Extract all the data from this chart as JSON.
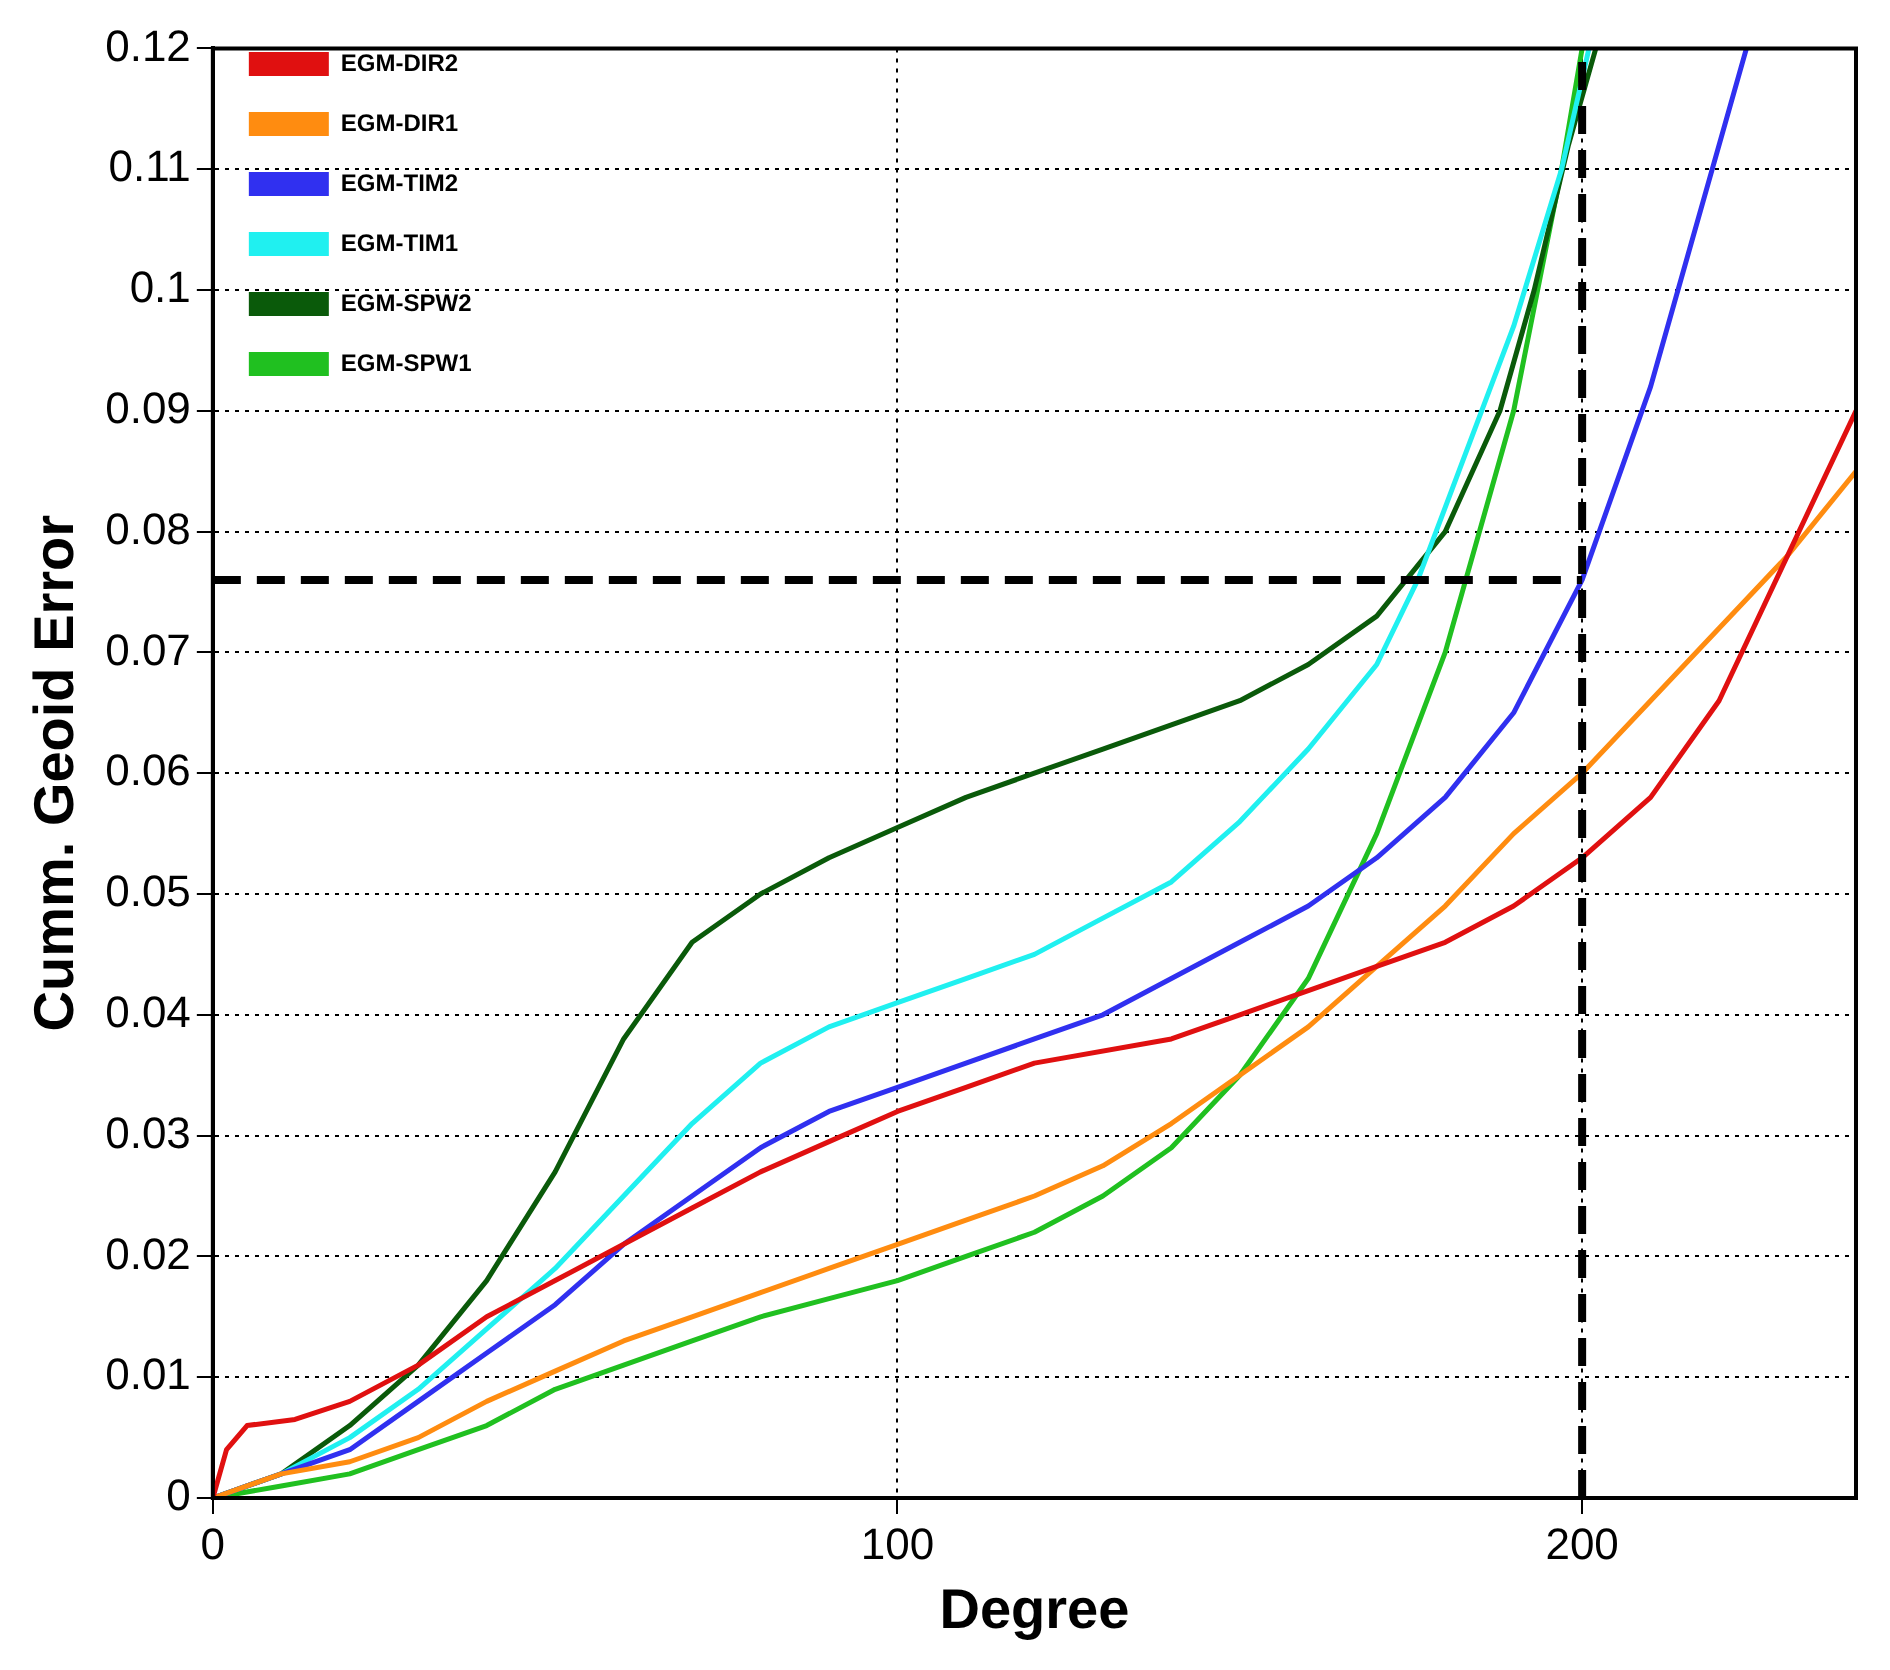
{
  "chart_data": {
    "type": "line",
    "xlabel": "Degree",
    "ylabel": "Cumm. Geoid Error",
    "xlim": [
      0,
      240
    ],
    "ylim": [
      0,
      0.12
    ],
    "xticks": [
      0,
      100,
      200
    ],
    "yticks": [
      0,
      0.01,
      0.02,
      0.03,
      0.04,
      0.05,
      0.06,
      0.07,
      0.08,
      0.09,
      0.1,
      0.11,
      0.12
    ],
    "grid": true,
    "legend": "top left",
    "marker": "none",
    "line_style": "solid",
    "ref_lines": [
      {
        "axis": "x",
        "value": 200,
        "line_style": "dashed",
        "color": "#000000"
      },
      {
        "axis": "y",
        "value": 0.076,
        "line_style": "dashed",
        "color": "#000000"
      }
    ],
    "series": [
      {
        "name": "EGM-DIR2",
        "color": "#e01010",
        "x": [
          0,
          2,
          5,
          12,
          20,
          30,
          40,
          50,
          60,
          70,
          80,
          90,
          100,
          110,
          120,
          140,
          150,
          160,
          170,
          180,
          190,
          200,
          210,
          220,
          230,
          240
        ],
        "values": [
          0,
          0.004,
          0.006,
          0.0065,
          0.008,
          0.011,
          0.015,
          0.018,
          0.021,
          0.024,
          0.027,
          0.0295,
          0.032,
          0.034,
          0.036,
          0.038,
          0.04,
          0.042,
          0.044,
          0.046,
          0.049,
          0.053,
          0.058,
          0.066,
          0.078,
          0.09
        ]
      },
      {
        "name": "EGM-DIR1",
        "color": "#ff8c10",
        "x": [
          0,
          10,
          20,
          30,
          40,
          50,
          60,
          70,
          80,
          90,
          100,
          110,
          120,
          130,
          140,
          150,
          160,
          170,
          180,
          190,
          200,
          210,
          220,
          230,
          240
        ],
        "values": [
          0,
          0.002,
          0.003,
          0.005,
          0.008,
          0.0105,
          0.013,
          0.015,
          0.017,
          0.019,
          0.021,
          0.023,
          0.025,
          0.0275,
          0.031,
          0.035,
          0.039,
          0.044,
          0.049,
          0.055,
          0.06,
          0.066,
          0.072,
          0.078,
          0.085
        ]
      },
      {
        "name": "EGM-TIM2",
        "color": "#3030f0",
        "x": [
          0,
          10,
          20,
          30,
          40,
          50,
          60,
          70,
          80,
          90,
          100,
          110,
          120,
          130,
          140,
          150,
          160,
          170,
          180,
          190,
          200,
          210,
          218,
          224
        ],
        "values": [
          0,
          0.002,
          0.004,
          0.008,
          0.012,
          0.016,
          0.021,
          0.025,
          0.029,
          0.032,
          0.034,
          0.036,
          0.038,
          0.04,
          0.043,
          0.046,
          0.049,
          0.053,
          0.058,
          0.065,
          0.076,
          0.092,
          0.108,
          0.12
        ]
      },
      {
        "name": "EGM-TIM1",
        "color": "#20f0f0",
        "x": [
          0,
          10,
          20,
          30,
          40,
          50,
          60,
          70,
          80,
          90,
          100,
          110,
          120,
          130,
          140,
          150,
          160,
          170,
          176,
          182,
          190,
          197,
          201
        ],
        "values": [
          0,
          0.002,
          0.005,
          0.009,
          0.014,
          0.019,
          0.025,
          0.031,
          0.036,
          0.039,
          0.041,
          0.043,
          0.045,
          0.048,
          0.051,
          0.056,
          0.062,
          0.069,
          0.076,
          0.085,
          0.097,
          0.11,
          0.12
        ]
      },
      {
        "name": "EGM-SPW2",
        "color": "#0a5a0a",
        "x": [
          0,
          10,
          20,
          30,
          40,
          50,
          60,
          70,
          80,
          90,
          100,
          110,
          120,
          130,
          140,
          150,
          160,
          170,
          180,
          188,
          193,
          198,
          202
        ],
        "values": [
          0,
          0.002,
          0.006,
          0.011,
          0.018,
          0.027,
          0.038,
          0.046,
          0.05,
          0.053,
          0.0555,
          0.058,
          0.06,
          0.062,
          0.064,
          0.066,
          0.069,
          0.073,
          0.08,
          0.09,
          0.1,
          0.112,
          0.12
        ]
      },
      {
        "name": "EGM-SPW1",
        "color": "#20c020",
        "x": [
          0,
          10,
          20,
          30,
          40,
          50,
          60,
          70,
          80,
          90,
          100,
          110,
          120,
          130,
          140,
          150,
          160,
          170,
          180,
          190,
          197,
          200
        ],
        "values": [
          0,
          0.001,
          0.002,
          0.004,
          0.006,
          0.009,
          0.011,
          0.013,
          0.015,
          0.0165,
          0.018,
          0.02,
          0.022,
          0.025,
          0.029,
          0.035,
          0.043,
          0.055,
          0.07,
          0.09,
          0.11,
          0.12
        ]
      }
    ]
  }
}
